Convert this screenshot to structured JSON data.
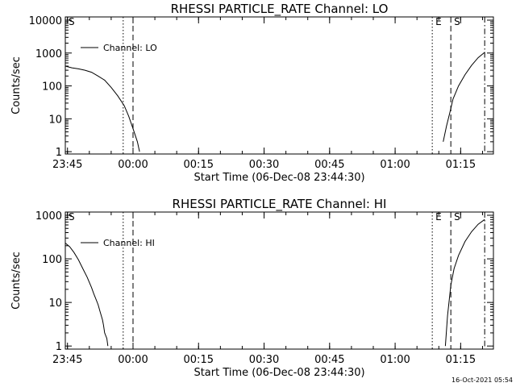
{
  "footer": {
    "timestamp": "16-Oct-2021 05:54"
  },
  "chart_data": [
    {
      "type": "line",
      "title": "RHESSI PARTICLE_RATE Channel: LO",
      "xlabel": "Start Time (06-Dec-08 23:44:30)",
      "ylabel": "Counts/sec",
      "y_scale": "log",
      "ylim": [
        0.85,
        10000
      ],
      "xlim": [
        "23:44:30",
        "01:22:30"
      ],
      "x_ticks": [
        "23:45",
        "00:00",
        "00:15",
        "00:30",
        "00:45",
        "01:00",
        "01:15"
      ],
      "y_ticks": [
        "1",
        "10",
        "100",
        "1000",
        "10000"
      ],
      "legend": {
        "label": "Channel: LO",
        "position": "top-left"
      },
      "markers": [
        {
          "label": "S",
          "time": "23:44:30",
          "style": "dash-dot"
        },
        {
          "label": "",
          "time": "23:57:45",
          "style": "dotted"
        },
        {
          "label": "",
          "time": "00:00:00",
          "style": "dashed"
        },
        {
          "label": "E",
          "time": "01:08:30",
          "style": "dotted"
        },
        {
          "label": "S",
          "time": "01:12:45",
          "style": "dashed"
        },
        {
          "label": "",
          "time": "01:20:30",
          "style": "dash-dot"
        }
      ],
      "series": [
        {
          "name": "Channel: LO",
          "segments": [
            [
              [
                "23:44:30",
                400
              ],
              [
                "23:46:00",
                355
              ],
              [
                "23:47:30",
                330
              ],
              [
                "23:49:00",
                300
              ],
              [
                "23:50:30",
                260
              ],
              [
                "23:52:00",
                200
              ],
              [
                "23:53:30",
                150
              ],
              [
                "23:55:00",
                90
              ],
              [
                "23:56:30",
                50
              ],
              [
                "23:58:00",
                25
              ],
              [
                "23:59:00",
                12
              ],
              [
                "00:00:00",
                5
              ],
              [
                "00:01:00",
                2
              ],
              [
                "00:01:30",
                1
              ]
            ],
            [
              [
                "01:11:00",
                2
              ],
              [
                "01:11:45",
                6
              ],
              [
                "01:12:30",
                15
              ],
              [
                "01:13:15",
                40
              ],
              [
                "01:14:30",
                100
              ],
              [
                "01:16:00",
                220
              ],
              [
                "01:17:30",
                420
              ],
              [
                "01:19:00",
                720
              ],
              [
                "01:20:30",
                1050
              ]
            ]
          ]
        }
      ]
    },
    {
      "type": "line",
      "title": "RHESSI PARTICLE_RATE Channel: HI",
      "xlabel": "Start Time (06-Dec-08 23:44:30)",
      "ylabel": "Counts/sec",
      "y_scale": "log",
      "ylim": [
        0.85,
        1000
      ],
      "xlim": [
        "23:44:30",
        "01:22:30"
      ],
      "x_ticks": [
        "23:45",
        "00:00",
        "00:15",
        "00:30",
        "00:45",
        "01:00",
        "01:15"
      ],
      "y_ticks": [
        "1",
        "10",
        "100",
        "1000"
      ],
      "legend": {
        "label": "Channel: HI",
        "position": "top-left"
      },
      "markers": [
        {
          "label": "S",
          "time": "23:44:30",
          "style": "dash-dot"
        },
        {
          "label": "",
          "time": "23:57:45",
          "style": "dotted"
        },
        {
          "label": "",
          "time": "00:00:00",
          "style": "dashed"
        },
        {
          "label": "E",
          "time": "01:08:30",
          "style": "dotted"
        },
        {
          "label": "S",
          "time": "01:12:45",
          "style": "dashed"
        },
        {
          "label": "",
          "time": "01:20:30",
          "style": "dash-dot"
        }
      ],
      "series": [
        {
          "name": "Channel: HI",
          "segments": [
            [
              [
                "23:44:30",
                230
              ],
              [
                "23:45:30",
                190
              ],
              [
                "23:46:30",
                140
              ],
              [
                "23:47:30",
                95
              ],
              [
                "23:48:30",
                60
              ],
              [
                "23:49:30",
                38
              ],
              [
                "23:50:30",
                22
              ],
              [
                "23:51:00",
                16
              ],
              [
                "23:51:30",
                12
              ],
              [
                "23:52:00",
                9
              ],
              [
                "23:52:30",
                6
              ],
              [
                "23:53:00",
                4
              ],
              [
                "23:53:15",
                3
              ],
              [
                "23:53:30",
                2
              ],
              [
                "23:54:00",
                1.5
              ],
              [
                "23:54:15",
                1
              ]
            ],
            [
              [
                "01:11:30",
                1
              ],
              [
                "01:12:00",
                5
              ],
              [
                "01:12:45",
                25
              ],
              [
                "01:13:30",
                60
              ],
              [
                "01:14:30",
                120
              ],
              [
                "01:16:00",
                250
              ],
              [
                "01:17:30",
                420
              ],
              [
                "01:19:00",
                620
              ],
              [
                "01:20:30",
                800
              ]
            ]
          ]
        }
      ]
    }
  ]
}
